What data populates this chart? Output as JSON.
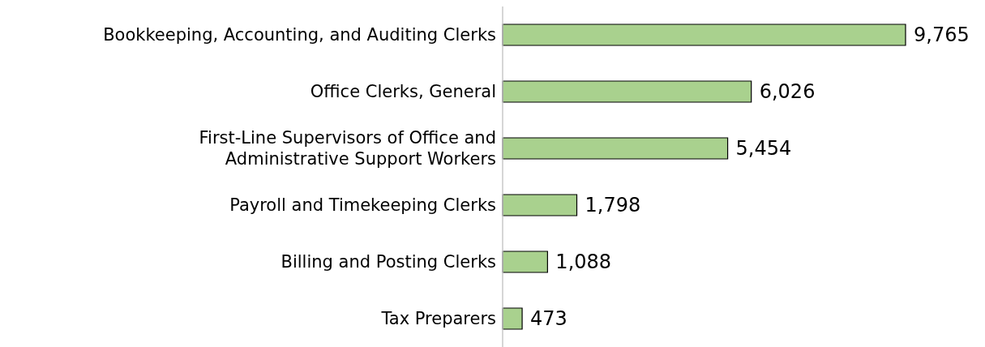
{
  "chart_data": {
    "type": "bar",
    "orientation": "horizontal",
    "categories": [
      "Bookkeeping, Accounting, and Auditing Clerks",
      "Office Clerks, General",
      "First-Line Supervisors of Office and Administrative Support Workers",
      "Payroll and Timekeeping Clerks",
      "Billing and Posting Clerks",
      "Tax Preparers"
    ],
    "values": [
      9765,
      6026,
      5454,
      1798,
      1088,
      473
    ],
    "value_labels": [
      "9,765",
      "6,026",
      "5,454",
      "1,798",
      "1,088",
      "473"
    ],
    "color": "#a9d18e"
  }
}
